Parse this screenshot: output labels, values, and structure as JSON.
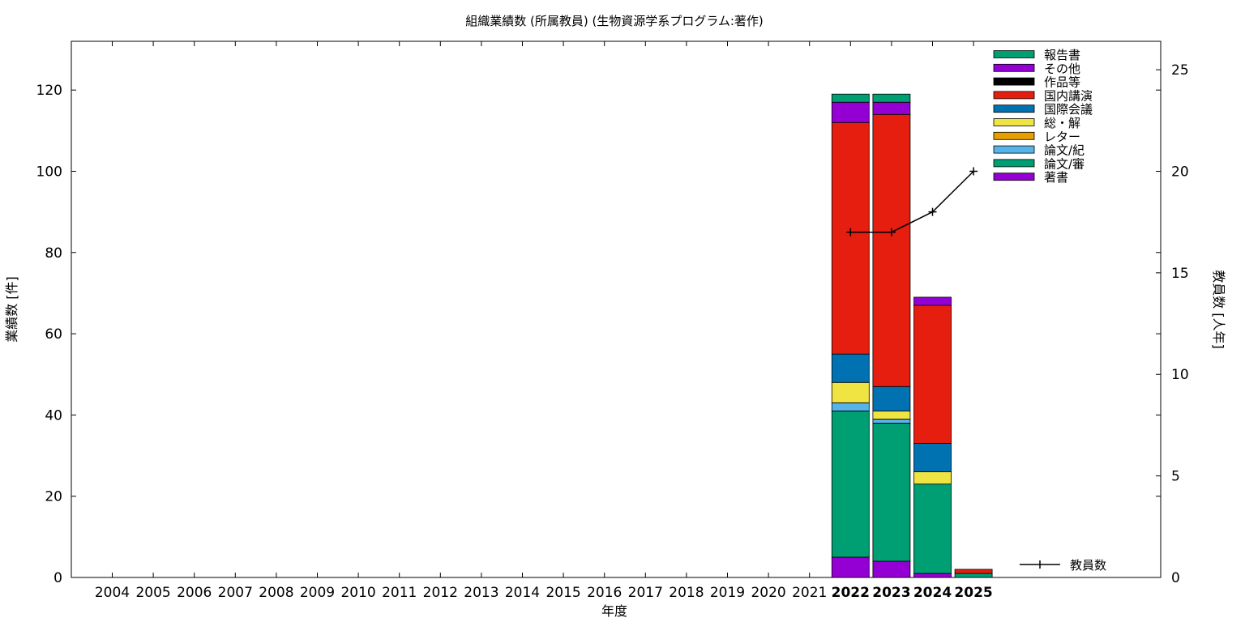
{
  "chart_data": {
    "type": "bar",
    "title": "組織業績数 (所属教員) (生物資源学系プログラム:著作)",
    "xlabel": "年度",
    "ylabel": "業績数 [件]",
    "y2label": "教員数 [人年]",
    "categories": [
      "2004",
      "2005",
      "2006",
      "2007",
      "2008",
      "2009",
      "2010",
      "2011",
      "2012",
      "2013",
      "2014",
      "2015",
      "2016",
      "2017",
      "2018",
      "2019",
      "2020",
      "2021",
      "2022",
      "2023",
      "2024",
      "2025"
    ],
    "bold_categories": [
      "2022",
      "2023",
      "2024",
      "2025"
    ],
    "ylim": [
      0,
      132
    ],
    "yticks": [
      0,
      20,
      40,
      60,
      80,
      100,
      120
    ],
    "y2lim": [
      0,
      26.4
    ],
    "y2ticks": [
      0,
      5,
      10,
      15,
      20,
      25
    ],
    "stacked": true,
    "legend_position": "top-right",
    "series": [
      {
        "name": "著書",
        "color": "#9400d3",
        "values": [
          0,
          0,
          0,
          0,
          0,
          0,
          0,
          0,
          0,
          0,
          0,
          0,
          0,
          0,
          0,
          0,
          0,
          0,
          5,
          4,
          1,
          0
        ]
      },
      {
        "name": "論文/審",
        "color": "#009e73",
        "values": [
          0,
          0,
          0,
          0,
          0,
          0,
          0,
          0,
          0,
          0,
          0,
          0,
          0,
          0,
          0,
          0,
          0,
          0,
          36,
          34,
          22,
          1
        ]
      },
      {
        "name": "論文/紀",
        "color": "#56b4e9",
        "values": [
          0,
          0,
          0,
          0,
          0,
          0,
          0,
          0,
          0,
          0,
          0,
          0,
          0,
          0,
          0,
          0,
          0,
          0,
          2,
          1,
          0,
          0
        ]
      },
      {
        "name": "レター",
        "color": "#e69f00",
        "values": [
          0,
          0,
          0,
          0,
          0,
          0,
          0,
          0,
          0,
          0,
          0,
          0,
          0,
          0,
          0,
          0,
          0,
          0,
          0,
          0,
          0,
          0
        ]
      },
      {
        "name": "総・解",
        "color": "#f0e442",
        "values": [
          0,
          0,
          0,
          0,
          0,
          0,
          0,
          0,
          0,
          0,
          0,
          0,
          0,
          0,
          0,
          0,
          0,
          0,
          5,
          2,
          3,
          0
        ]
      },
      {
        "name": "国際会議",
        "color": "#0072b2",
        "values": [
          0,
          0,
          0,
          0,
          0,
          0,
          0,
          0,
          0,
          0,
          0,
          0,
          0,
          0,
          0,
          0,
          0,
          0,
          7,
          6,
          7,
          0
        ]
      },
      {
        "name": "国内講演",
        "color": "#e51e10",
        "values": [
          0,
          0,
          0,
          0,
          0,
          0,
          0,
          0,
          0,
          0,
          0,
          0,
          0,
          0,
          0,
          0,
          0,
          0,
          57,
          67,
          34,
          1
        ]
      },
      {
        "name": "作品等",
        "color": "#000000",
        "values": [
          0,
          0,
          0,
          0,
          0,
          0,
          0,
          0,
          0,
          0,
          0,
          0,
          0,
          0,
          0,
          0,
          0,
          0,
          0,
          0,
          0,
          0
        ]
      },
      {
        "name": "その他",
        "color": "#9400d3",
        "values": [
          0,
          0,
          0,
          0,
          0,
          0,
          0,
          0,
          0,
          0,
          0,
          0,
          0,
          0,
          0,
          0,
          0,
          0,
          5,
          3,
          2,
          0
        ]
      },
      {
        "name": "報告書",
        "color": "#009e73",
        "values": [
          0,
          0,
          0,
          0,
          0,
          0,
          0,
          0,
          0,
          0,
          0,
          0,
          0,
          0,
          0,
          0,
          0,
          0,
          2,
          2,
          0,
          0
        ]
      }
    ],
    "line_series": {
      "name": "教員数",
      "color": "#000000",
      "axis": "y2",
      "points": [
        {
          "x": "2022",
          "y": 17
        },
        {
          "x": "2023",
          "y": 17
        },
        {
          "x": "2024",
          "y": 18
        },
        {
          "x": "2025",
          "y": 20
        }
      ]
    }
  }
}
